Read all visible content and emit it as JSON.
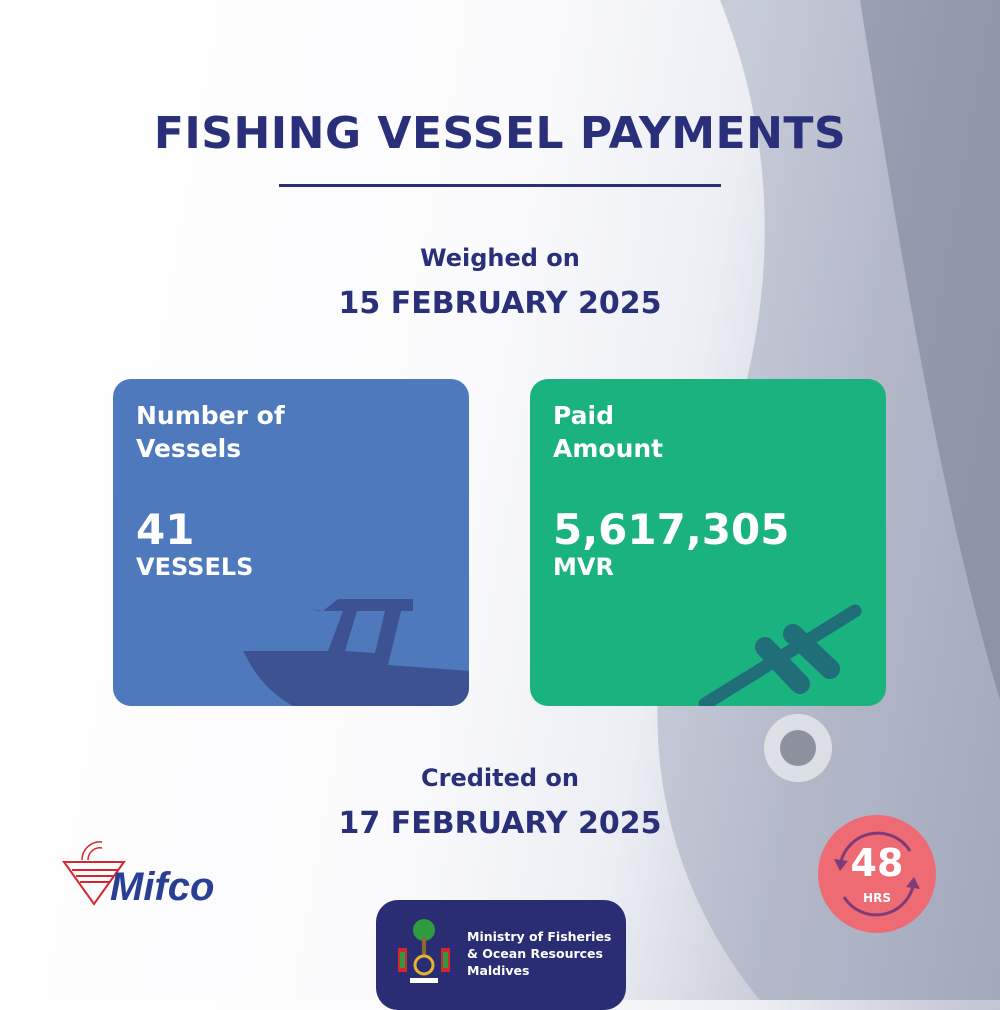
{
  "title": "FISHING VESSEL PAYMENTS",
  "weighed": {
    "label": "Weighed on",
    "date": "15 FEBRUARY 2025"
  },
  "credited": {
    "label": "Credited on",
    "date": "17 FEBRUARY 2025"
  },
  "cards": [
    {
      "label_line1": "Number of",
      "label_line2": "Vessels",
      "value": "41",
      "unit": "VESSELS",
      "icon": "boat-icon",
      "color": "#4f79bd"
    },
    {
      "label_line1": "Paid",
      "label_line2": "Amount",
      "value": "5,617,305",
      "unit": "MVR",
      "icon": "fish-skeleton-icon",
      "color": "#1ab37f"
    }
  ],
  "logos": {
    "mifco": "Mifco",
    "ministry": {
      "line1": "Ministry of Fisheries",
      "line2": "& Ocean Resources",
      "line3": "Maldives"
    }
  },
  "badge": {
    "value": "48",
    "unit": "HRS",
    "color": "#ee6b73"
  },
  "colors": {
    "navy": "#2a2f7a"
  }
}
